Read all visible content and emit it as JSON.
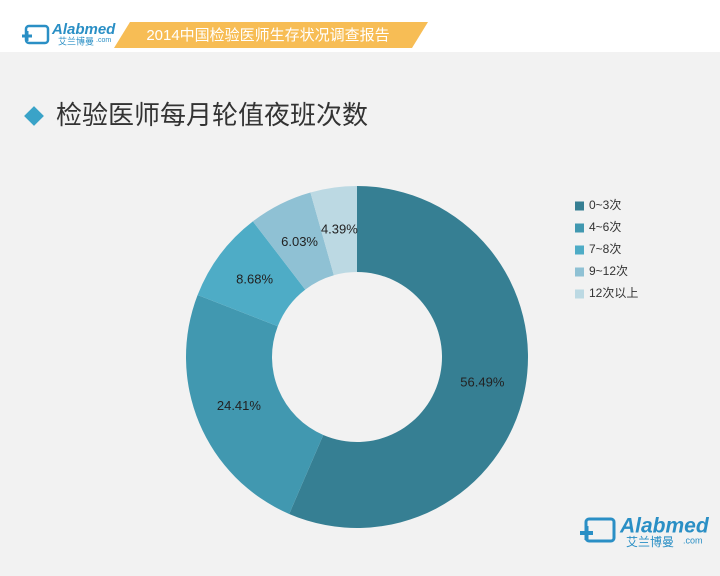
{
  "header": {
    "logo": {
      "brand": "Alabmed",
      "domain": ".com",
      "cn": "艾兰博曼"
    },
    "banner": "2014中国检验医师生存状况调查报告"
  },
  "chart_data": {
    "type": "pie",
    "donut": true,
    "title": "检验医师每月轮值夜班次数",
    "categories": [
      "0~3次",
      "4~6次",
      "7~8次",
      "9~12次",
      "12次以上"
    ],
    "values": [
      56.49,
      24.41,
      8.68,
      6.03,
      4.39
    ],
    "value_labels": [
      "56.49%",
      "24.41%",
      "8.68%",
      "6.03%",
      "4.39%"
    ],
    "colors": [
      "#367f93",
      "#4198b0",
      "#4eacc6",
      "#8fc1d4",
      "#bcd9e3"
    ],
    "legend": "right"
  }
}
